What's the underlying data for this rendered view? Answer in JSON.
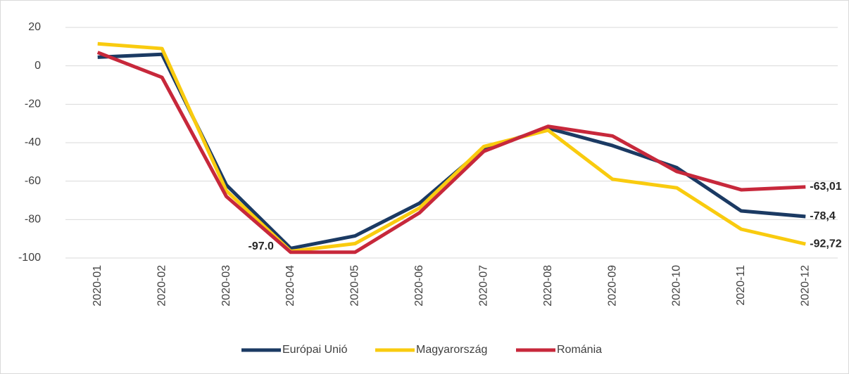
{
  "chart_data": {
    "type": "line",
    "categories": [
      "2020-01",
      "2020-02",
      "2020-03",
      "2020-04",
      "2020-05",
      "2020-06",
      "2020-07",
      "2020-08",
      "2020-09",
      "2020-10",
      "2020-11",
      "2020-12"
    ],
    "series": [
      {
        "name": "Európai Unió",
        "color": "#1b3a63",
        "values": [
          4.5,
          6,
          -62,
          -95,
          -88.5,
          -71.5,
          -43,
          -32.5,
          -41.5,
          -53,
          -75.5,
          -78.4
        ],
        "value_labels": [
          null,
          null,
          null,
          null,
          null,
          null,
          null,
          null,
          null,
          null,
          null,
          "-78,4"
        ]
      },
      {
        "name": "Magyarország",
        "color": "#f9cb0f",
        "values": [
          11.5,
          9,
          -65,
          -96.5,
          -92.5,
          -74,
          -42,
          -33.5,
          -59,
          -63.5,
          -85,
          -92.72
        ],
        "value_labels": [
          null,
          null,
          null,
          null,
          null,
          null,
          null,
          null,
          null,
          null,
          null,
          "-92,72"
        ]
      },
      {
        "name": "Románia",
        "color": "#c7283b",
        "values": [
          7,
          -6,
          -68,
          -97,
          -97,
          -76.5,
          -44.5,
          -31.5,
          -36.5,
          -55,
          -64.5,
          -63.01
        ],
        "value_labels": [
          null,
          null,
          null,
          "-97.0",
          null,
          null,
          null,
          null,
          null,
          null,
          null,
          "-63,01"
        ]
      }
    ],
    "ylim": [
      -100,
      20
    ],
    "yticks": [
      20,
      0,
      -20,
      -40,
      -60,
      -80,
      -100
    ],
    "grid": true,
    "legend": "bottom"
  }
}
